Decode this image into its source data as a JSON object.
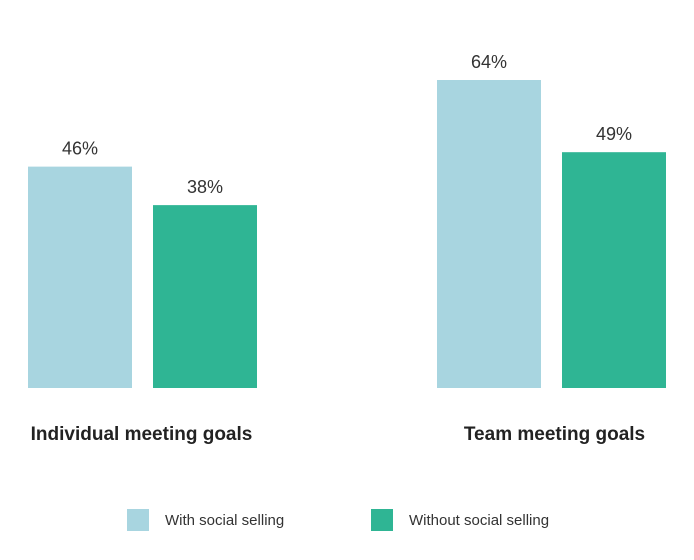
{
  "chart_data": {
    "type": "bar",
    "title": "",
    "xlabel": "",
    "ylabel": "",
    "ylim": [
      0,
      64
    ],
    "grid": false,
    "legend_position": "bottom",
    "value_suffix": "%",
    "categories": [
      "Individual meeting goals",
      "Team meeting goals"
    ],
    "series": [
      {
        "name": "With social selling",
        "color": "#a8d5e0",
        "values": [
          46,
          64
        ]
      },
      {
        "name": "Without social selling",
        "color": "#2fb594",
        "values": [
          38,
          49
        ]
      }
    ]
  }
}
